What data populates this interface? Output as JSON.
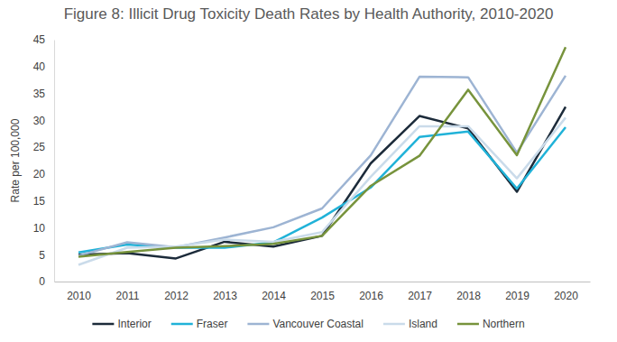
{
  "chart_data": {
    "type": "line",
    "title": "Figure 8: Illicit Drug Toxicity Death Rates by Health Authority, 2010-2020",
    "y_label": "Rate per 100,000",
    "categories": [
      "2010",
      "2011",
      "2012",
      "2013",
      "2014",
      "2015",
      "2016",
      "2017",
      "2018",
      "2019",
      "2020"
    ],
    "series": [
      {
        "name": "Interior",
        "color": "#1c2b3a",
        "values": [
          5.0,
          5.3,
          4.3,
          7.4,
          6.5,
          8.5,
          22.0,
          30.8,
          28.5,
          16.7,
          32.5
        ]
      },
      {
        "name": "Fraser",
        "color": "#20b2d8",
        "values": [
          5.4,
          6.9,
          6.3,
          6.3,
          7.3,
          11.9,
          17.5,
          26.9,
          27.9,
          17.3,
          28.7
        ]
      },
      {
        "name": "Vancouver Coastal",
        "color": "#9db4d3",
        "values": [
          4.8,
          7.3,
          6.4,
          8.2,
          10.1,
          13.6,
          23.5,
          38.1,
          38.0,
          24.0,
          38.3
        ]
      },
      {
        "name": "Island",
        "color": "#cadbea",
        "values": [
          3.1,
          6.3,
          6.5,
          7.8,
          7.4,
          9.2,
          19.5,
          28.9,
          28.9,
          19.2,
          30.5
        ]
      },
      {
        "name": "Northern",
        "color": "#77933c",
        "values": [
          4.6,
          5.5,
          6.3,
          6.6,
          7.0,
          8.5,
          17.8,
          23.4,
          35.7,
          23.5,
          43.6
        ]
      }
    ],
    "ylim": [
      0,
      45
    ],
    "yticks": [
      0,
      5,
      10,
      15,
      20,
      25,
      30,
      35,
      40,
      45
    ],
    "grid": false,
    "legend": "bottom"
  }
}
